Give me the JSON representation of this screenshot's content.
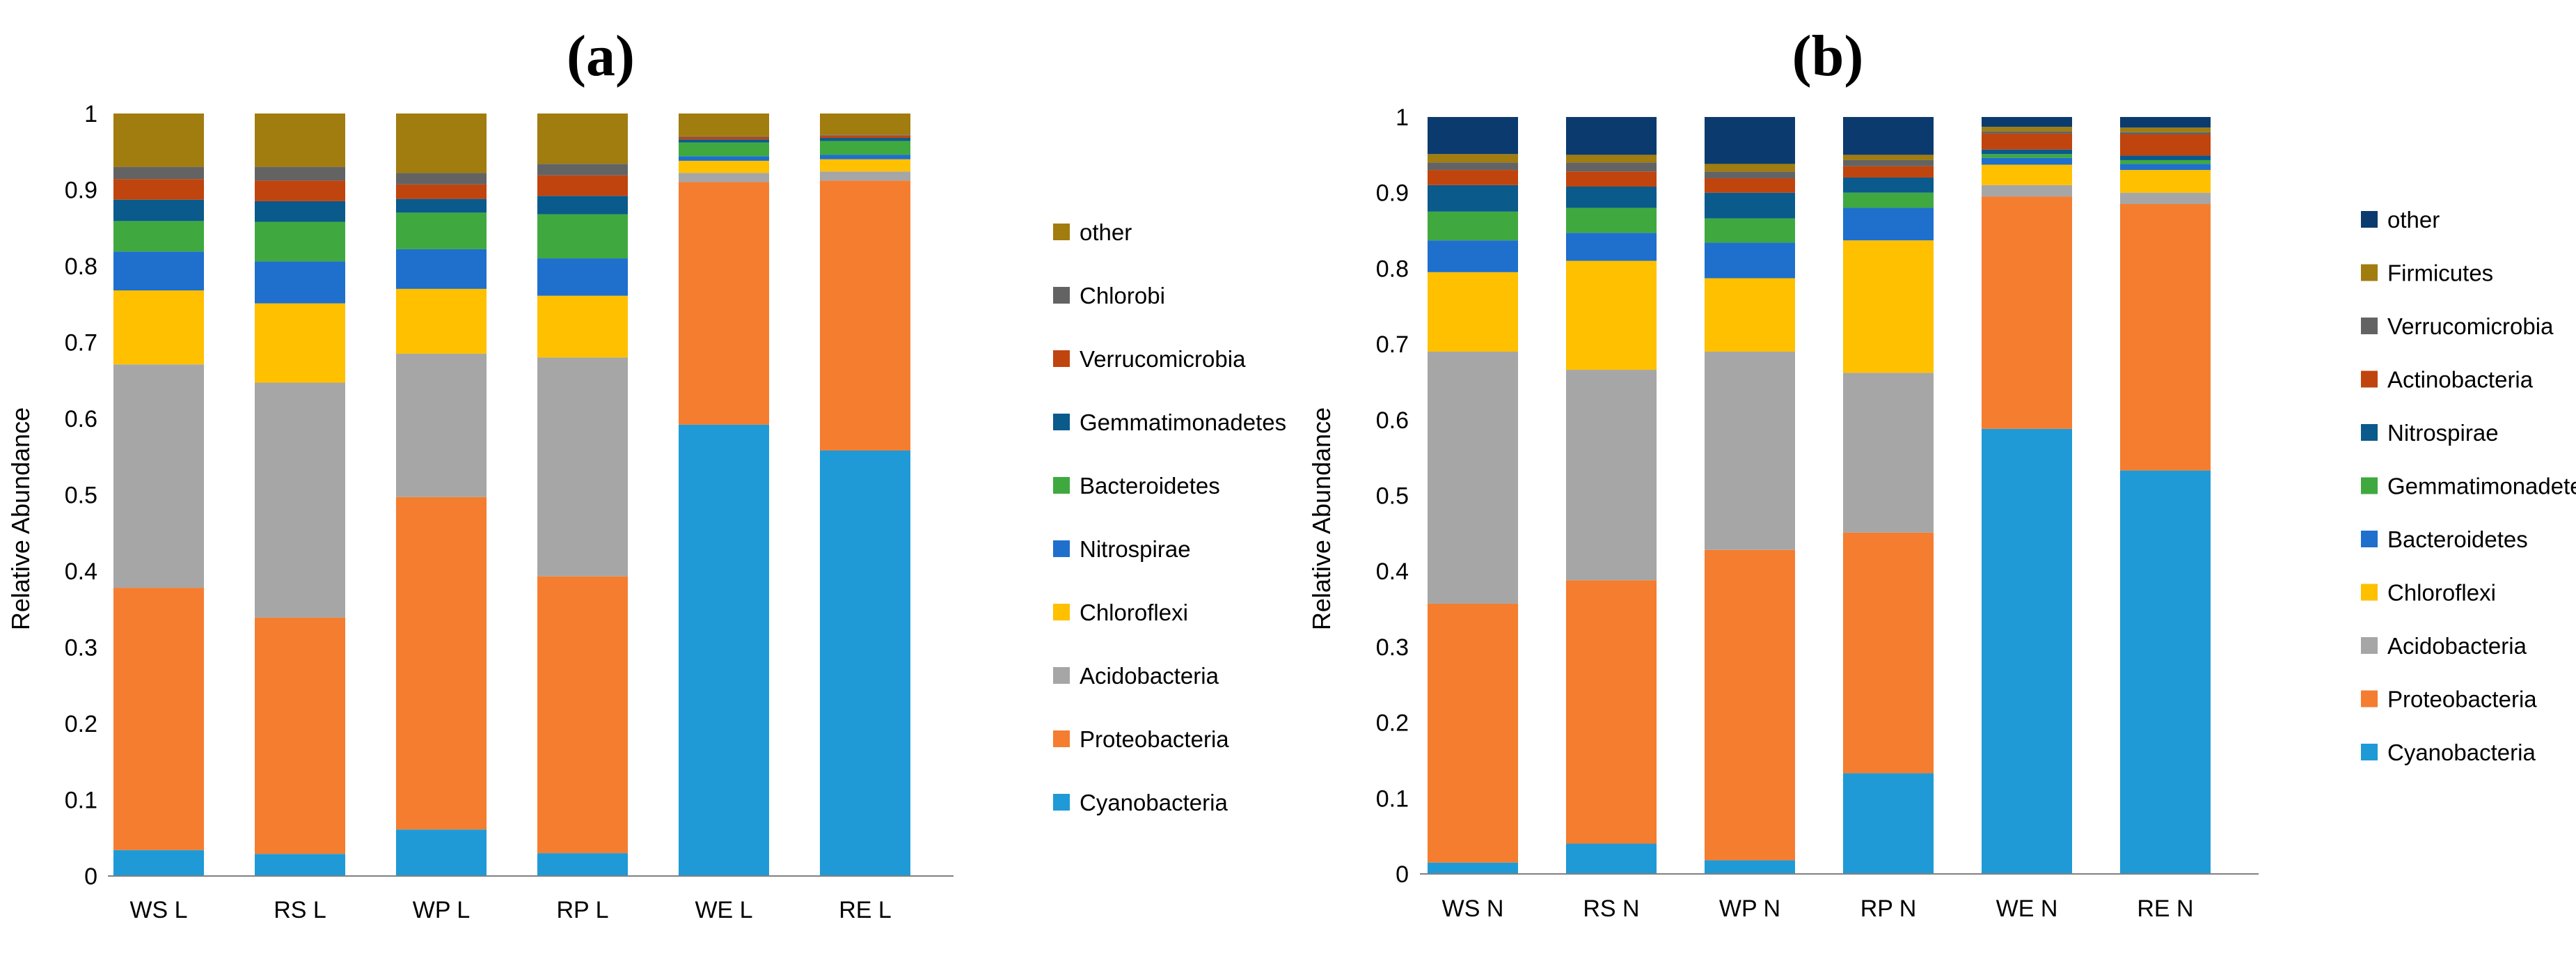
{
  "chart_data": [
    {
      "type": "bar",
      "stacked": true,
      "title": "(a)",
      "xlabel": "",
      "ylabel": "Relative Abundance",
      "ylim": [
        0,
        1
      ],
      "yticks": [
        "0",
        "0.1",
        "0.2",
        "0.3",
        "0.4",
        "0.5",
        "0.6",
        "0.7",
        "0.8",
        "0.9",
        "1"
      ],
      "categories": [
        "WS L",
        "RS L",
        "WP L",
        "RP L",
        "WE L",
        "RE L"
      ],
      "legend_position": "right",
      "series": [
        {
          "name": "Cyanobacteria",
          "color": "#1f9ad6",
          "values": [
            0.034,
            0.029,
            0.061,
            0.03,
            0.592,
            0.558
          ]
        },
        {
          "name": "Proteobacteria",
          "color": "#f47d30",
          "values": [
            0.344,
            0.31,
            0.436,
            0.363,
            0.318,
            0.354
          ]
        },
        {
          "name": "Acidobacteria",
          "color": "#a6a6a6",
          "values": [
            0.293,
            0.308,
            0.188,
            0.287,
            0.012,
            0.012
          ]
        },
        {
          "name": "Chloroflexi",
          "color": "#ffc000",
          "values": [
            0.097,
            0.104,
            0.085,
            0.081,
            0.016,
            0.016
          ]
        },
        {
          "name": "Nitrospirae",
          "color": "#1f6fcc",
          "values": [
            0.051,
            0.055,
            0.052,
            0.049,
            0.006,
            0.006
          ]
        },
        {
          "name": "Bacteroidetes",
          "color": "#3fa940",
          "values": [
            0.04,
            0.052,
            0.048,
            0.058,
            0.018,
            0.018
          ]
        },
        {
          "name": "Gemmatimonadetes",
          "color": "#0a5a8c",
          "values": [
            0.028,
            0.027,
            0.018,
            0.024,
            0.004,
            0.004
          ]
        },
        {
          "name": "Verrucomicrobia",
          "color": "#c0440e",
          "values": [
            0.027,
            0.027,
            0.019,
            0.027,
            0.003,
            0.003
          ]
        },
        {
          "name": "Chlorobi",
          "color": "#636363",
          "values": [
            0.016,
            0.018,
            0.015,
            0.015,
            0.001,
            0.001
          ]
        },
        {
          "name": "other",
          "color": "#a17c0f",
          "values": [
            0.07,
            0.07,
            0.078,
            0.066,
            0.03,
            0.028
          ]
        }
      ],
      "legend_order": [
        "other",
        "Chlorobi",
        "Verrucomicrobia",
        "Gemmatimonadetes",
        "Bacteroidetes",
        "Nitrospirae",
        "Chloroflexi",
        "Acidobacteria",
        "Proteobacteria",
        "Cyanobacteria"
      ]
    },
    {
      "type": "bar",
      "stacked": true,
      "title": "(b)",
      "xlabel": "",
      "ylabel": "Relative Abundance",
      "ylim": [
        0,
        1
      ],
      "yticks": [
        "0",
        "0.1",
        "0.2",
        "0.3",
        "0.4",
        "0.5",
        "0.6",
        "0.7",
        "0.8",
        "0.9",
        "1"
      ],
      "categories": [
        "WS N",
        "RS N",
        "WP N",
        "RP N",
        "WE N",
        "RE N"
      ],
      "legend_position": "right",
      "series": [
        {
          "name": "Cyanobacteria",
          "color": "#1f9ad6",
          "values": [
            0.015,
            0.04,
            0.018,
            0.133,
            0.588,
            0.533
          ]
        },
        {
          "name": "Proteobacteria",
          "color": "#f47d30",
          "values": [
            0.342,
            0.348,
            0.41,
            0.318,
            0.307,
            0.352
          ]
        },
        {
          "name": "Acidobacteria",
          "color": "#a6a6a6",
          "values": [
            0.333,
            0.278,
            0.262,
            0.211,
            0.015,
            0.015
          ]
        },
        {
          "name": "Chloroflexi",
          "color": "#ffc000",
          "values": [
            0.105,
            0.144,
            0.097,
            0.175,
            0.027,
            0.03
          ]
        },
        {
          "name": "Bacteroidetes",
          "color": "#1f6fcc",
          "values": [
            0.042,
            0.037,
            0.047,
            0.043,
            0.009,
            0.008
          ]
        },
        {
          "name": "Gemmatimonadetes",
          "color": "#3fa940",
          "values": [
            0.038,
            0.033,
            0.032,
            0.02,
            0.005,
            0.005
          ]
        },
        {
          "name": "Nitrospirae",
          "color": "#0a5a8c",
          "values": [
            0.035,
            0.028,
            0.034,
            0.02,
            0.006,
            0.006
          ]
        },
        {
          "name": "Actinobacteria",
          "color": "#c0440e",
          "values": [
            0.02,
            0.02,
            0.019,
            0.015,
            0.021,
            0.028
          ]
        },
        {
          "name": "Verrucomicrobia",
          "color": "#636363",
          "values": [
            0.01,
            0.012,
            0.009,
            0.008,
            0.003,
            0.003
          ]
        },
        {
          "name": "Firmicutes",
          "color": "#a17c0f",
          "values": [
            0.011,
            0.01,
            0.01,
            0.007,
            0.006,
            0.006
          ]
        },
        {
          "name": "other",
          "color": "#0b3b6e",
          "values": [
            0.049,
            0.05,
            0.062,
            0.05,
            0.013,
            0.014
          ]
        }
      ],
      "legend_order": [
        "other",
        "Firmicutes",
        "Verrucomicrobia",
        "Actinobacteria",
        "Nitrospirae",
        "Gemmatimonadetes",
        "Bacteroidetes",
        "Chloroflexi",
        "Acidobacteria",
        "Proteobacteria",
        "Cyanobacteria"
      ]
    }
  ]
}
